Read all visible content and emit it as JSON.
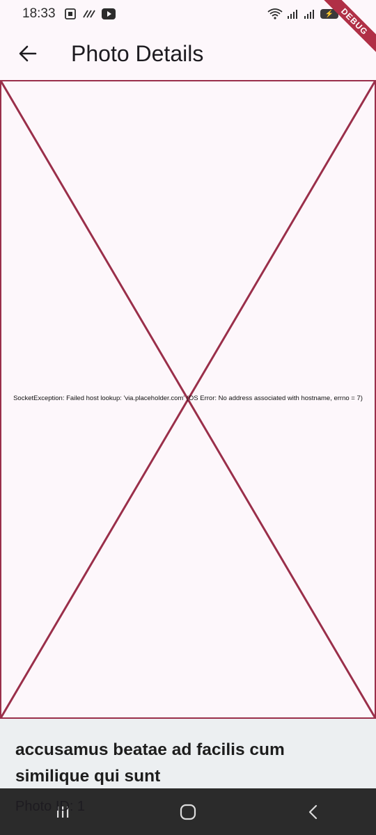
{
  "status_bar": {
    "time": "18:33",
    "icons": [
      "screenshot-icon",
      "nfc-icon",
      "youtube-icon",
      "wifi-icon",
      "signal-icon",
      "signal-icon",
      "battery-icon"
    ],
    "battery_label": "⚡"
  },
  "debug_banner": "DEBUG",
  "app_bar": {
    "title": "Photo Details",
    "back_icon": "arrow-back-icon"
  },
  "image": {
    "error_text": "SocketException: Failed host lookup: 'via.placeholder.com' (OS Error: No address associated with hostname, errno = 7)",
    "placeholder_color": "#9a2f4a"
  },
  "photo": {
    "title": "accusamus beatae ad facilis cum similique qui sunt",
    "id_label": "Photo ID: 1"
  },
  "nav_bar": {
    "buttons": [
      "recents-icon",
      "home-icon",
      "back-icon"
    ]
  }
}
